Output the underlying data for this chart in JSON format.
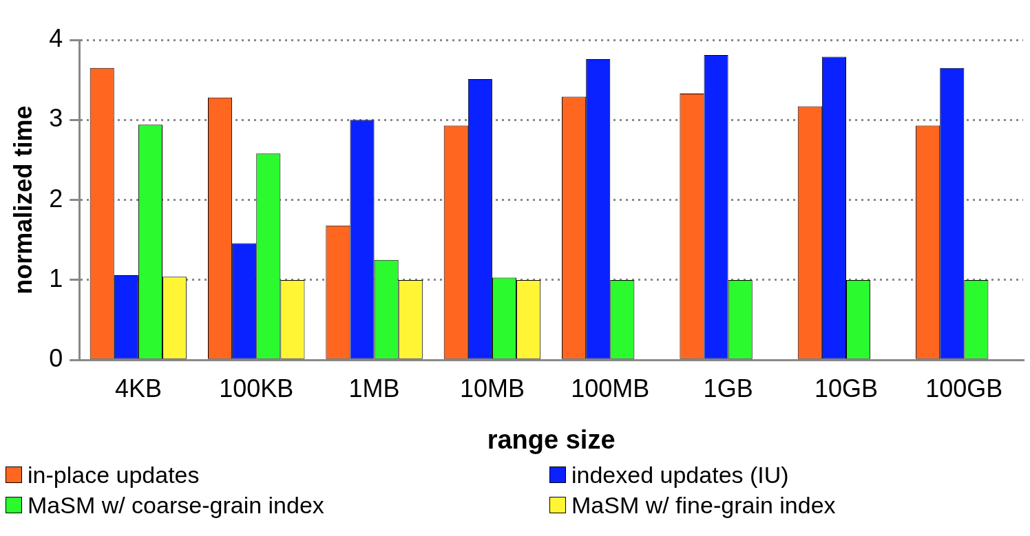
{
  "chart_data": {
    "type": "bar",
    "xlabel": "range size",
    "ylabel": "normalized time",
    "categories": [
      "4KB",
      "100KB",
      "1MB",
      "10MB",
      "100MB",
      "1GB",
      "10GB",
      "100GB"
    ],
    "series": [
      {
        "name": "in-place updates",
        "color": "#ff6620",
        "values": [
          3.65,
          3.28,
          1.68,
          2.93,
          3.29,
          3.33,
          3.17,
          2.93
        ]
      },
      {
        "name": "indexed updates (IU)",
        "color": "#0a22ff",
        "values": [
          1.06,
          1.46,
          3.0,
          3.51,
          3.76,
          3.81,
          3.79,
          3.65
        ]
      },
      {
        "name": "MaSM w/ coarse-grain index",
        "color": "#2afa2e",
        "values": [
          2.94,
          2.58,
          1.25,
          1.03,
          1.0,
          1.0,
          1.0,
          1.0
        ]
      },
      {
        "name": "MaSM w/ fine-grain index",
        "color": "#fff534",
        "values": [
          1.04,
          1.0,
          1.0,
          1.0,
          null,
          null,
          null,
          null
        ]
      }
    ],
    "ylim": [
      0,
      4
    ],
    "yticks": [
      0,
      1,
      2,
      3,
      4
    ],
    "grid": "y",
    "legend": "bottom"
  }
}
